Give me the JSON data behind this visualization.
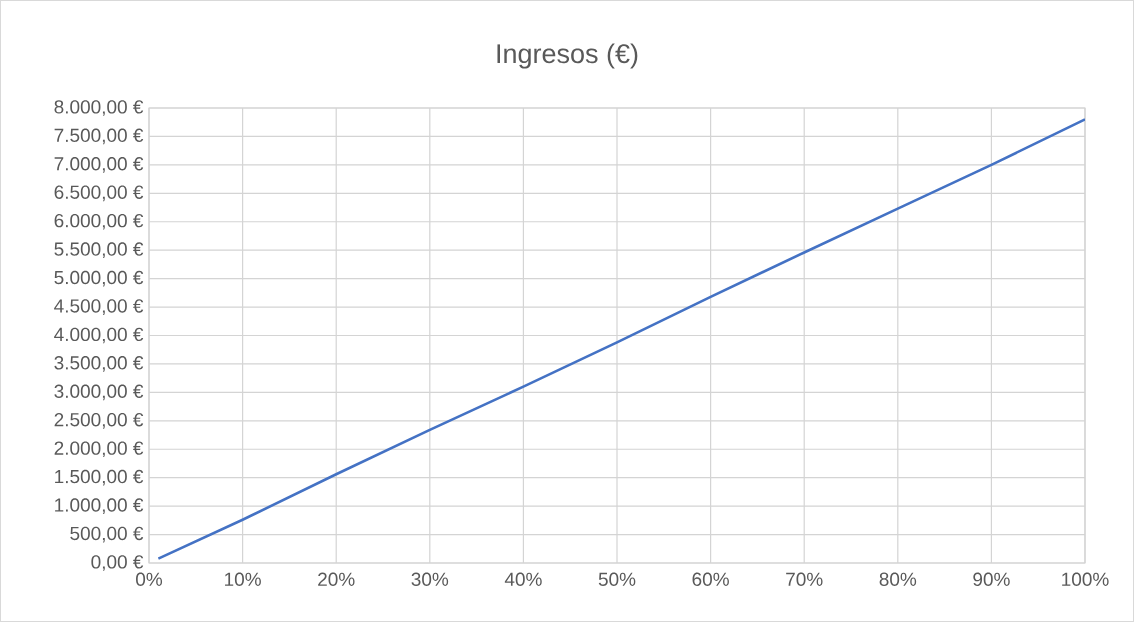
{
  "chart_data": {
    "type": "line",
    "title": "Ingresos (€)",
    "x": [
      1,
      10,
      20,
      30,
      40,
      50,
      60,
      70,
      80,
      90,
      100
    ],
    "series": [
      {
        "color": "#4472c4",
        "values": [
          78,
          760,
          1560,
          2340,
          3100,
          3880,
          4680,
          5460,
          6230,
          7000,
          7800
        ]
      }
    ],
    "xlim": [
      0,
      100
    ],
    "xticks": [
      {
        "value": 0,
        "label": "0%"
      },
      {
        "value": 10,
        "label": "10%"
      },
      {
        "value": 20,
        "label": "20%"
      },
      {
        "value": 30,
        "label": "30%"
      },
      {
        "value": 40,
        "label": "40%"
      },
      {
        "value": 50,
        "label": "50%"
      },
      {
        "value": 60,
        "label": "60%"
      },
      {
        "value": 70,
        "label": "70%"
      },
      {
        "value": 80,
        "label": "80%"
      },
      {
        "value": 90,
        "label": "90%"
      },
      {
        "value": 100,
        "label": "100%"
      }
    ],
    "ylim": [
      0,
      8000
    ],
    "yticks": [
      {
        "value": 0,
        "label": "0,00 €"
      },
      {
        "value": 500,
        "label": "500,00 €"
      },
      {
        "value": 1000,
        "label": "1.000,00 €"
      },
      {
        "value": 1500,
        "label": "1.500,00 €"
      },
      {
        "value": 2000,
        "label": "2.000,00 €"
      },
      {
        "value": 2500,
        "label": "2.500,00 €"
      },
      {
        "value": 3000,
        "label": "3.000,00 €"
      },
      {
        "value": 3500,
        "label": "3.500,00 €"
      },
      {
        "value": 4000,
        "label": "4.000,00 €"
      },
      {
        "value": 4500,
        "label": "4.500,00 €"
      },
      {
        "value": 5000,
        "label": "5.000,00 €"
      },
      {
        "value": 5500,
        "label": "5.500,00 €"
      },
      {
        "value": 6000,
        "label": "6.000,00 €"
      },
      {
        "value": 6500,
        "label": "6.500,00 €"
      },
      {
        "value": 7000,
        "label": "7.000,00 €"
      },
      {
        "value": 7500,
        "label": "7.500,00 €"
      },
      {
        "value": 8000,
        "label": "8.000,00 €"
      }
    ],
    "grid": true,
    "legend": false,
    "marker": "none",
    "line_style": "solid"
  }
}
